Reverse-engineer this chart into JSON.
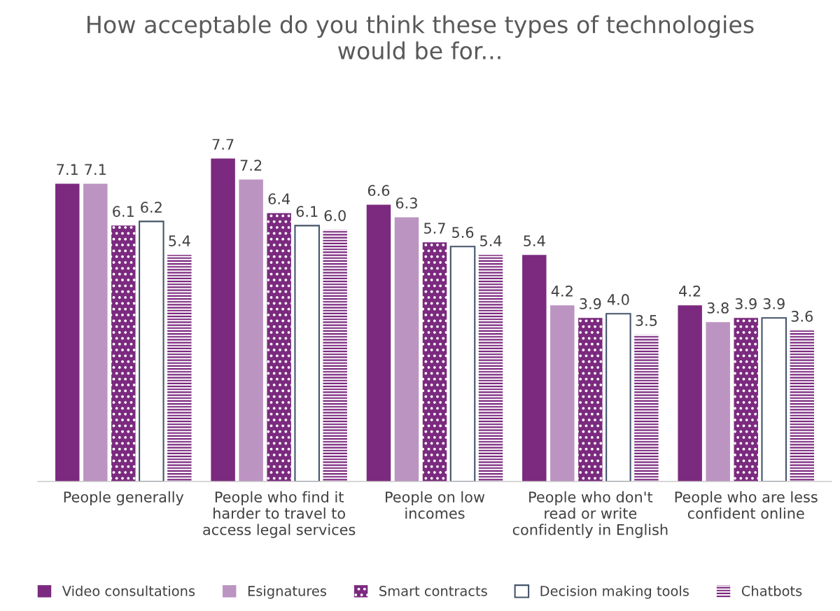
{
  "chart_data": {
    "type": "bar",
    "title": "How acceptable do you think these types of technologies\nwould be for...",
    "categories": [
      "People generally",
      "People who find it\nharder to travel to\naccess legal services",
      "People on low\nincomes",
      "People who don't\nread or write\nconfidently in English",
      "People who are less\nconfident online"
    ],
    "series": [
      {
        "name": "Video consultations",
        "color": "#7b2a7f",
        "values": [
          7.1,
          7.7,
          6.6,
          5.4,
          4.2
        ],
        "value_labels": [
          "7.1",
          "7.7",
          "6.6",
          "5.4",
          "4.2"
        ]
      },
      {
        "name": "Esignatures",
        "color": "#bc94c2",
        "values": [
          7.1,
          7.2,
          6.3,
          4.2,
          3.8
        ],
        "value_labels": [
          "7.1",
          "7.2",
          "6.3",
          "4.2",
          "3.8"
        ]
      },
      {
        "name": "Smart contracts",
        "color": "#7b2a7f",
        "values": [
          6.1,
          6.4,
          5.7,
          3.9,
          3.9
        ],
        "value_labels": [
          "6.1",
          "6.4",
          "5.7",
          "3.9",
          "3.9"
        ]
      },
      {
        "name": "Decision making tools",
        "color": "#ffffff",
        "values": [
          6.2,
          6.1,
          5.6,
          4.0,
          3.9
        ],
        "value_labels": [
          "6.2",
          "6.1",
          "5.6",
          "4.0",
          "3.9"
        ]
      },
      {
        "name": "Chatbots",
        "color": "#7b2a7f",
        "values": [
          5.4,
          6.0,
          5.4,
          3.5,
          3.6
        ],
        "value_labels": [
          "5.4",
          "6.0",
          "5.4",
          "3.5",
          "3.6"
        ]
      }
    ],
    "grid": false,
    "legend": "bottom"
  }
}
